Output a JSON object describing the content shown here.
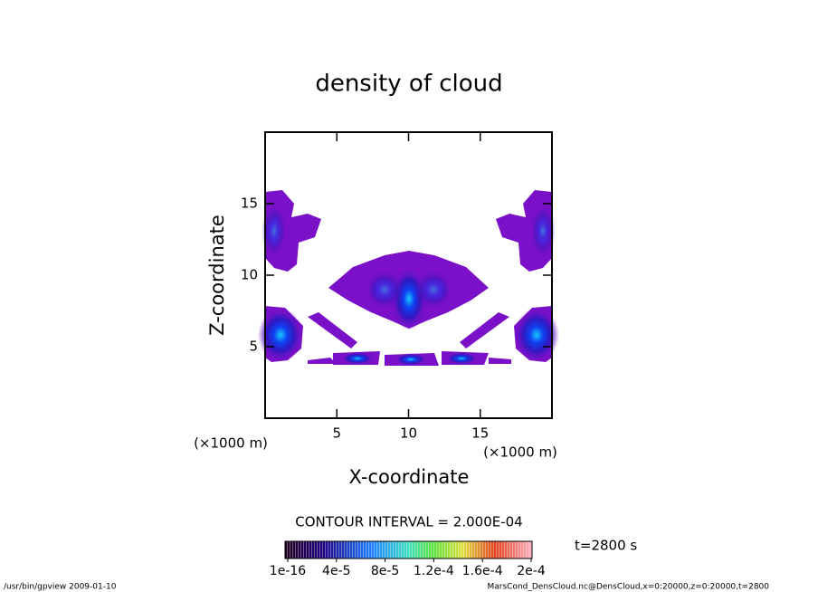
{
  "chart_data": {
    "type": "contour",
    "title": "density of cloud",
    "x_label": "X-coordinate",
    "y_label": "Z-coordinate",
    "x_unit": "(×1000 m)",
    "y_unit": "(×1000 m)",
    "xlim": [
      0,
      20
    ],
    "ylim": [
      0,
      20
    ],
    "xticks": [
      5,
      10,
      15
    ],
    "yticks": [
      5,
      10,
      15
    ],
    "contour_interval": "CONTOUR INTERVAL = 2.000E-04",
    "time": "t=2800 s",
    "colorbar": {
      "lim": [
        1e-16,
        0.0002
      ],
      "ticks": [
        {
          "value": 1e-16,
          "label": "1e-16"
        },
        {
          "value": 4e-05,
          "label": "4e-5"
        },
        {
          "value": 8e-05,
          "label": "8e-5"
        },
        {
          "value": 0.00012,
          "label": "1.2e-4"
        },
        {
          "value": 0.00016,
          "label": "1.6e-4"
        },
        {
          "value": 0.0002,
          "label": "2e-4"
        }
      ]
    },
    "footer_left": "/usr/bin/gpview  2009-01-10",
    "footer_right": "MarsCond_DensCloud.nc@DensCloud,x=0:20000,z=0:20000,t=2800"
  }
}
